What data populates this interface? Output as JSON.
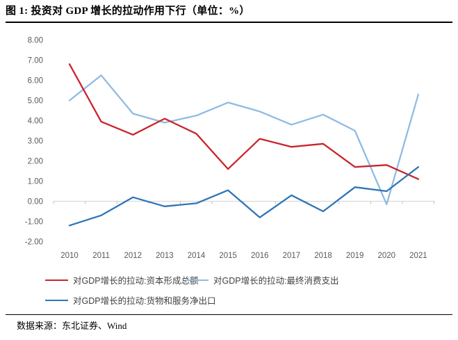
{
  "header": {
    "title": "图 1: 投资对 GDP 增长的拉动作用下行（单位：%）"
  },
  "footer": {
    "source": "数据来源：东北证券、Wind"
  },
  "colors": {
    "series_capital_formation": "#c9252b",
    "series_final_consumption": "#8fbbe3",
    "series_net_exports": "#2e75b6",
    "axis_label": "#595959",
    "gridline": "#d9d9d9",
    "tick": "#bfbfbf"
  },
  "chart_data": {
    "type": "line",
    "title": "投资对 GDP 增长的拉动作用下行（单位：%）",
    "categories": [
      "2010",
      "2011",
      "2012",
      "2013",
      "2014",
      "2015",
      "2016",
      "2017",
      "2018",
      "2019",
      "2020",
      "2021"
    ],
    "series": [
      {
        "name": "对GDP增长的拉动:资本形成总额",
        "color": "#c9252b",
        "values": [
          6.8,
          3.95,
          3.3,
          4.1,
          3.35,
          1.6,
          3.1,
          2.7,
          2.85,
          1.7,
          1.8,
          1.1
        ]
      },
      {
        "name": "对GDP增长的拉动:最终消费支出",
        "color": "#8fbbe3",
        "values": [
          5.0,
          6.25,
          4.35,
          3.9,
          4.25,
          4.9,
          4.45,
          3.8,
          4.3,
          3.5,
          -0.15,
          5.3
        ]
      },
      {
        "name": "对GDP增长的拉动:货物和服务净出口",
        "color": "#2e75b6",
        "values": [
          -1.2,
          -0.7,
          0.2,
          -0.25,
          -0.1,
          0.55,
          -0.8,
          0.3,
          -0.5,
          0.7,
          0.5,
          1.7
        ]
      }
    ],
    "xlabel": "",
    "ylabel": "",
    "ylim": [
      -2.0,
      8.0
    ],
    "y_tick_labels": [
      "8.00",
      "7.00",
      "6.00",
      "5.00",
      "4.00",
      "3.00",
      "2.00",
      "1.00",
      "0.00",
      "-1.00",
      "-2.00"
    ],
    "grid": "zero-line-only",
    "legend_position": "bottom"
  },
  "legend": {
    "items": [
      {
        "label": "对GDP增长的拉动:资本形成总额"
      },
      {
        "label": "对GDP增长的拉动:最终消费支出"
      },
      {
        "label": "对GDP增长的拉动:货物和服务净出口"
      }
    ]
  }
}
